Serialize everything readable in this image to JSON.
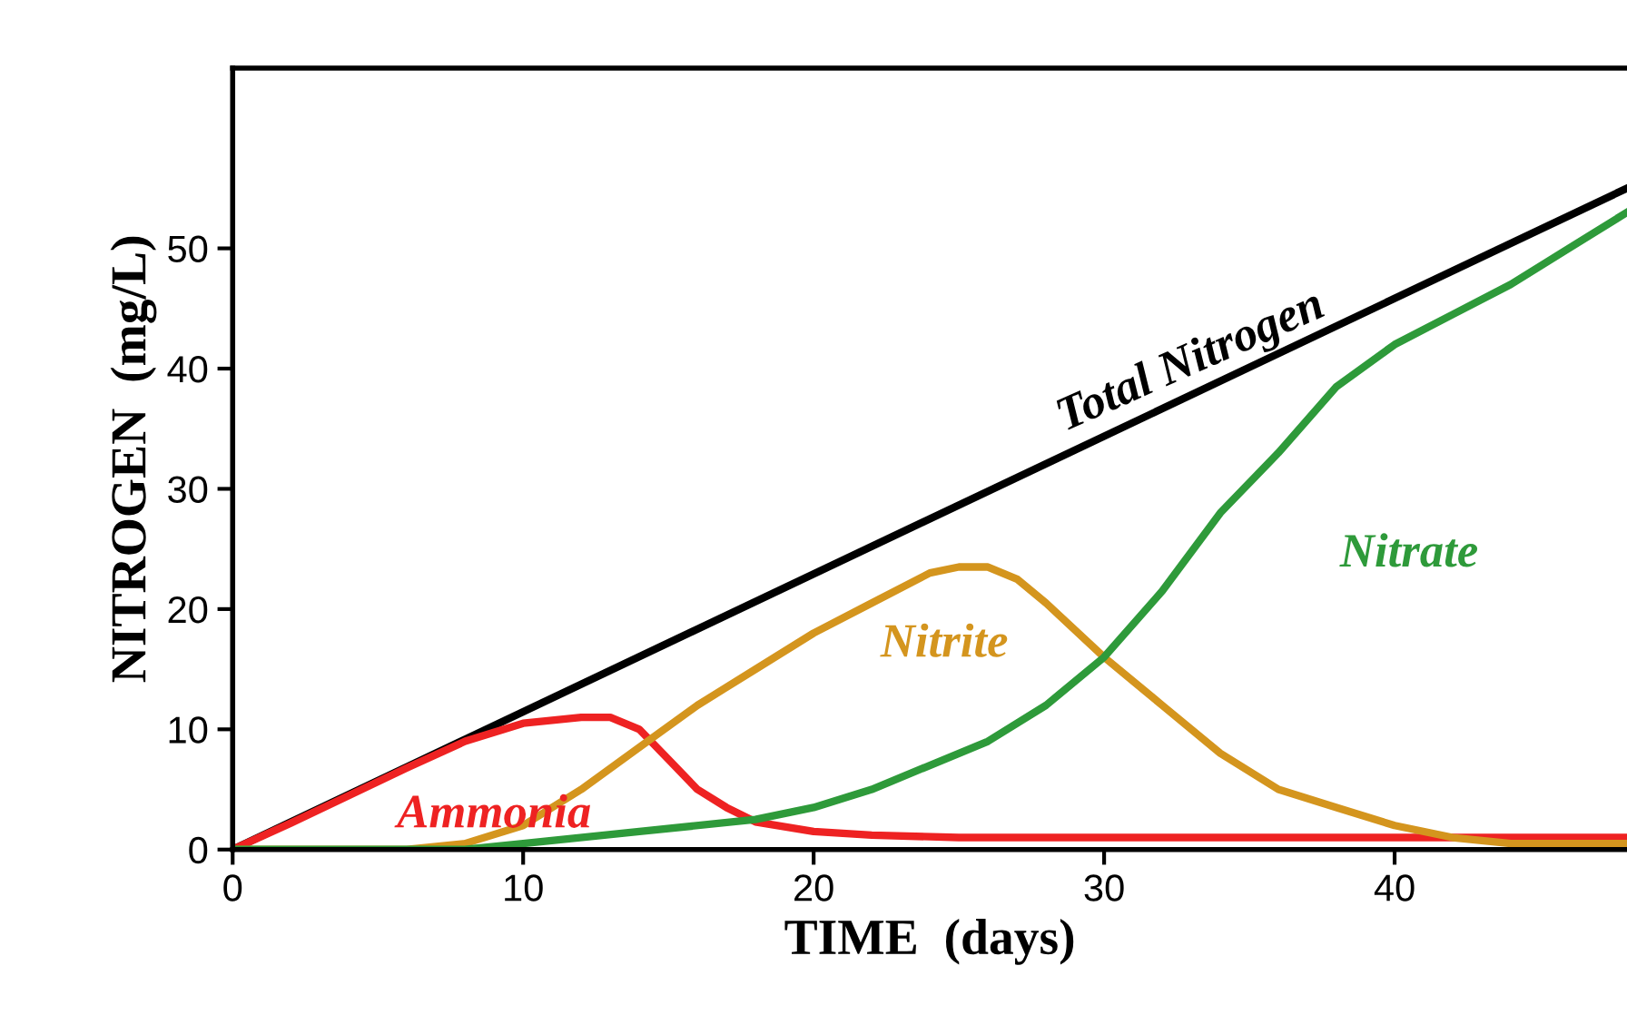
{
  "chart_data": {
    "type": "line",
    "xlabel": "TIME  (days)",
    "ylabel": "NITROGEN  (mg/L)",
    "xlim": [
      0,
      48
    ],
    "ylim": [
      0,
      65
    ],
    "xticks": [
      0,
      10,
      20,
      30,
      40
    ],
    "yticks": [
      0,
      10,
      20,
      30,
      40,
      50
    ],
    "grid": false,
    "legend": false,
    "marker": "none",
    "line_style": "solid",
    "series": [
      {
        "name": "Total Nitrogen",
        "color": "#000000",
        "x": [
          0,
          48
        ],
        "values": [
          0,
          55
        ]
      },
      {
        "name": "Ammonia",
        "color": "#ee2222",
        "x": [
          0,
          2,
          4,
          6,
          8,
          10,
          12,
          13,
          14,
          15,
          16,
          17,
          18,
          20,
          22,
          25,
          48
        ],
        "values": [
          0,
          2.2,
          4.5,
          6.8,
          9,
          10.5,
          11,
          11,
          10,
          7.5,
          5,
          3.5,
          2.3,
          1.5,
          1.2,
          1,
          1
        ]
      },
      {
        "name": "Nitrite",
        "color": "#d4951e",
        "x": [
          0,
          6,
          8,
          10,
          12,
          14,
          16,
          18,
          20,
          22,
          24,
          25,
          26,
          27,
          28,
          30,
          32,
          34,
          36,
          38,
          40,
          42,
          44,
          48
        ],
        "values": [
          0,
          0,
          0.5,
          2,
          5,
          8.5,
          12,
          15,
          18,
          20.5,
          23,
          23.5,
          23.5,
          22.5,
          20.5,
          16,
          12,
          8,
          5,
          3.5,
          2,
          1,
          0.5,
          0.5
        ]
      },
      {
        "name": "Nitrate",
        "color": "#2e9a3a",
        "x": [
          0,
          8,
          10,
          14,
          18,
          20,
          22,
          24,
          26,
          28,
          30,
          32,
          34,
          36,
          38,
          40,
          42,
          44,
          46,
          48
        ],
        "values": [
          0,
          0,
          0.5,
          1.5,
          2.5,
          3.5,
          5,
          7,
          9,
          12,
          16,
          21.5,
          28,
          33,
          38.5,
          42,
          44.5,
          47,
          50,
          53
        ]
      }
    ]
  }
}
